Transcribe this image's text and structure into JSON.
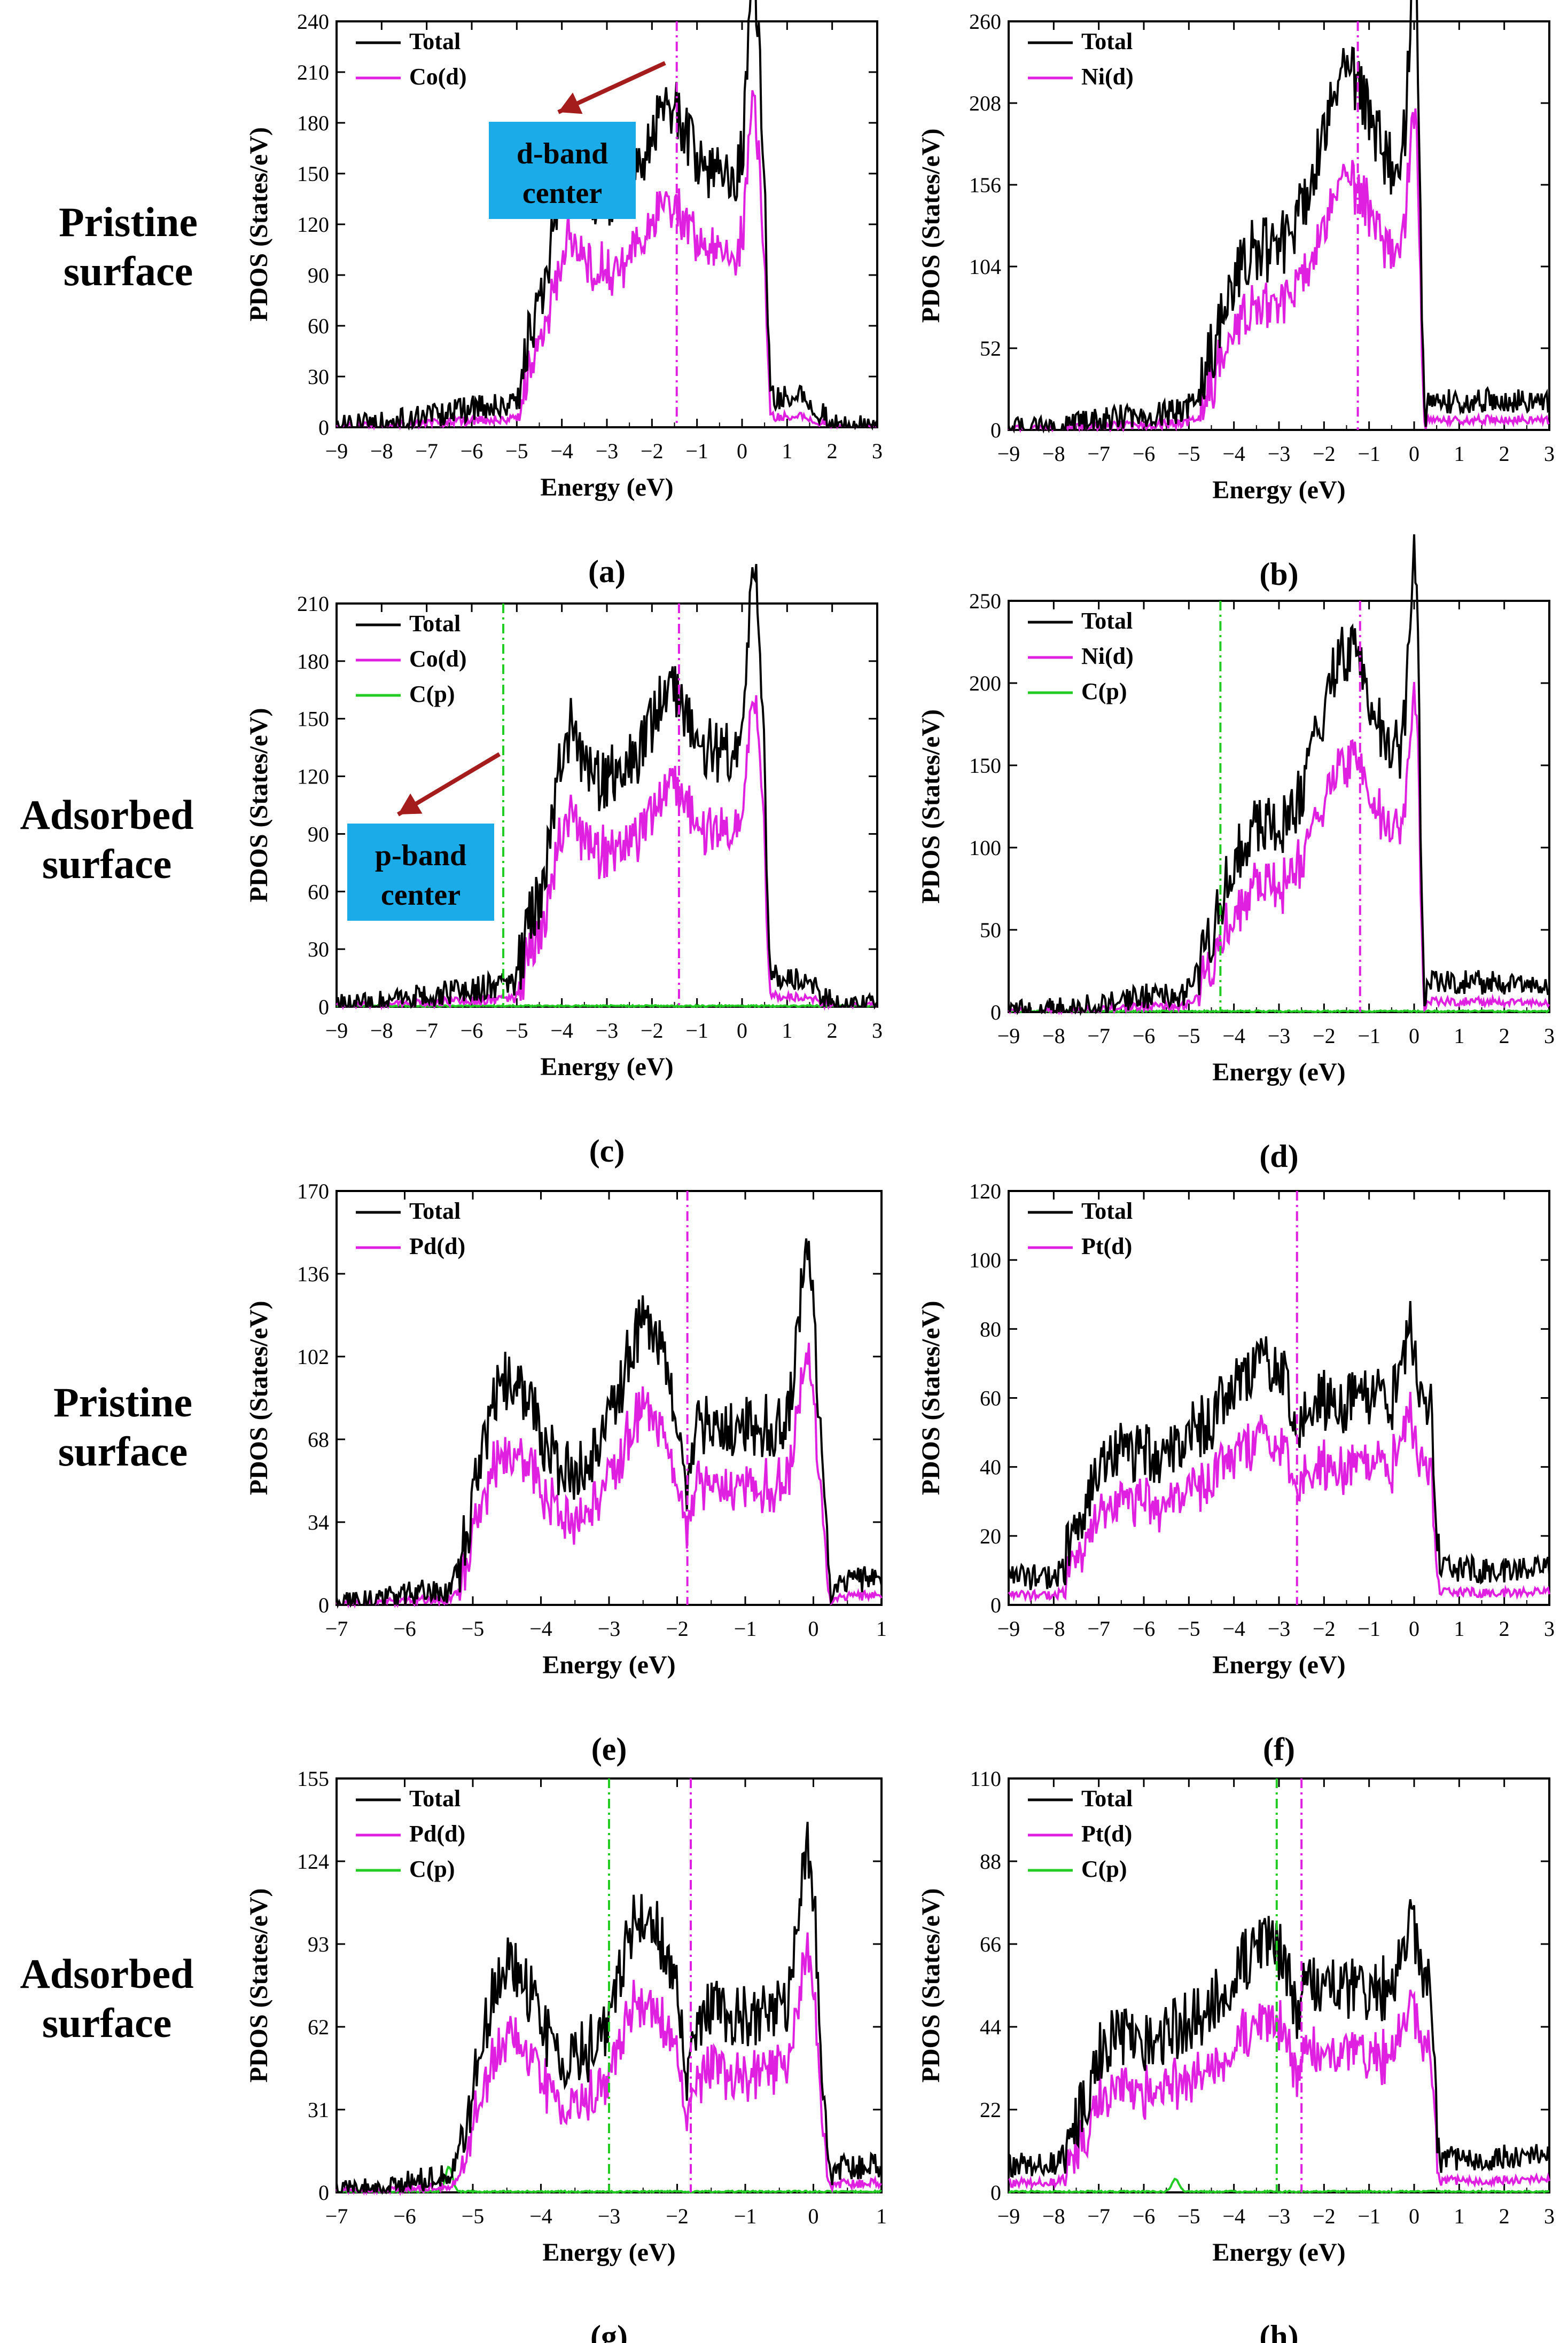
{
  "figure": {
    "row_labels": [
      {
        "line1": "Pristine",
        "line2": "surface"
      },
      {
        "line1": "Adsorbed",
        "line2": "surface"
      },
      {
        "line1": "Pristine",
        "line2": "surface"
      },
      {
        "line1": "Adsorbed",
        "line2": "surface"
      }
    ],
    "callouts": [
      {
        "panel": 0,
        "line1": "d-band",
        "line2": "center",
        "box_color": "#1aabe8",
        "arrow_color": "#a51c1c"
      },
      {
        "panel": 2,
        "line1": "p-band",
        "line2": "center",
        "box_color": "#1aabe8",
        "arrow_color": "#a51c1c"
      }
    ],
    "colors": {
      "total": "#000000",
      "d": "#e020e0",
      "p": "#22cc22"
    }
  },
  "chart_data": [
    {
      "panel_label": "(a)",
      "type": "line",
      "xlabel": "Energy (eV)",
      "ylabel": "PDOS (States/eV)",
      "xlim": [
        -9,
        3
      ],
      "ylim": [
        0,
        240
      ],
      "xticks": [
        -9,
        -8,
        -7,
        -6,
        -5,
        -4,
        -3,
        -2,
        -1,
        0,
        1,
        2,
        3
      ],
      "yticks": [
        0,
        30,
        60,
        90,
        120,
        150,
        180,
        210,
        240
      ],
      "metal": "Co",
      "legend": [
        "Total",
        "Co(d)"
      ],
      "d_band_center": -1.45,
      "p_band_center": null
    },
    {
      "panel_label": "(b)",
      "type": "line",
      "xlabel": "Energy (eV)",
      "ylabel": "PDOS (States/eV)",
      "xlim": [
        -9,
        3
      ],
      "ylim": [
        0,
        260
      ],
      "xticks": [
        -9,
        -8,
        -7,
        -6,
        -5,
        -4,
        -3,
        -2,
        -1,
        0,
        1,
        2,
        3
      ],
      "yticks": [
        0,
        52,
        104,
        156,
        208,
        260
      ],
      "metal": "Ni",
      "legend": [
        "Total",
        "Ni(d)"
      ],
      "d_band_center": -1.25,
      "p_band_center": null
    },
    {
      "panel_label": "(c)",
      "type": "line",
      "xlabel": "Energy (eV)",
      "ylabel": "PDOS (States/eV)",
      "xlim": [
        -9,
        3
      ],
      "ylim": [
        0,
        210
      ],
      "xticks": [
        -9,
        -8,
        -7,
        -6,
        -5,
        -4,
        -3,
        -2,
        -1,
        0,
        1,
        2,
        3
      ],
      "yticks": [
        0,
        30,
        60,
        90,
        120,
        150,
        180,
        210
      ],
      "metal": "Co",
      "legend": [
        "Total",
        "Co(d)",
        "C(p)"
      ],
      "d_band_center": -1.4,
      "p_band_center": -5.3
    },
    {
      "panel_label": "(d)",
      "type": "line",
      "xlabel": "Energy (eV)",
      "ylabel": "PDOS (States/eV)",
      "xlim": [
        -9,
        3
      ],
      "ylim": [
        0,
        250
      ],
      "xticks": [
        -9,
        -8,
        -7,
        -6,
        -5,
        -4,
        -3,
        -2,
        -1,
        0,
        1,
        2,
        3
      ],
      "yticks": [
        0,
        50,
        100,
        150,
        200,
        250
      ],
      "metal": "Ni",
      "legend": [
        "Total",
        "Ni(d)",
        "C(p)"
      ],
      "d_band_center": -1.2,
      "p_band_center": -4.3
    },
    {
      "panel_label": "(e)",
      "type": "line",
      "xlabel": "Energy (eV)",
      "ylabel": "PDOS (States/eV)",
      "xlim": [
        -7,
        1
      ],
      "ylim": [
        0,
        170
      ],
      "xticks": [
        -7,
        -6,
        -5,
        -4,
        -3,
        -2,
        -1,
        0,
        1
      ],
      "yticks": [
        0,
        34,
        68,
        102,
        136,
        170
      ],
      "metal": "Pd",
      "legend": [
        "Total",
        "Pd(d)"
      ],
      "d_band_center": -1.85,
      "p_band_center": null
    },
    {
      "panel_label": "(f)",
      "type": "line",
      "xlabel": "Energy (eV)",
      "ylabel": "PDOS (States/eV)",
      "xlim": [
        -9,
        3
      ],
      "ylim": [
        0,
        120
      ],
      "xticks": [
        -9,
        -8,
        -7,
        -6,
        -5,
        -4,
        -3,
        -2,
        -1,
        0,
        1,
        2,
        3
      ],
      "yticks": [
        0,
        20,
        40,
        60,
        80,
        100,
        120
      ],
      "metal": "Pt",
      "legend": [
        "Total",
        "Pt(d)"
      ],
      "d_band_center": -2.6,
      "p_band_center": null
    },
    {
      "panel_label": "(g)",
      "type": "line",
      "xlabel": "Energy (eV)",
      "ylabel": "PDOS (States/eV)",
      "xlim": [
        -7,
        1
      ],
      "ylim": [
        0,
        155
      ],
      "xticks": [
        -7,
        -6,
        -5,
        -4,
        -3,
        -2,
        -1,
        0,
        1
      ],
      "yticks": [
        0,
        31,
        62,
        93,
        124,
        155
      ],
      "metal": "Pd",
      "legend": [
        "Total",
        "Pd(d)",
        "C(p)"
      ],
      "d_band_center": -1.8,
      "p_band_center": -3.0
    },
    {
      "panel_label": "(h)",
      "type": "line",
      "xlabel": "Energy (eV)",
      "ylabel": "PDOS (States/eV)",
      "xlim": [
        -9,
        3
      ],
      "ylim": [
        0,
        110
      ],
      "xticks": [
        -9,
        -8,
        -7,
        -6,
        -5,
        -4,
        -3,
        -2,
        -1,
        0,
        1,
        2,
        3
      ],
      "yticks": [
        0,
        22,
        44,
        66,
        88,
        110
      ],
      "metal": "Pt",
      "legend": [
        "Total",
        "Pt(d)",
        "C(p)"
      ],
      "d_band_center": -2.5,
      "p_band_center": -3.05
    }
  ]
}
